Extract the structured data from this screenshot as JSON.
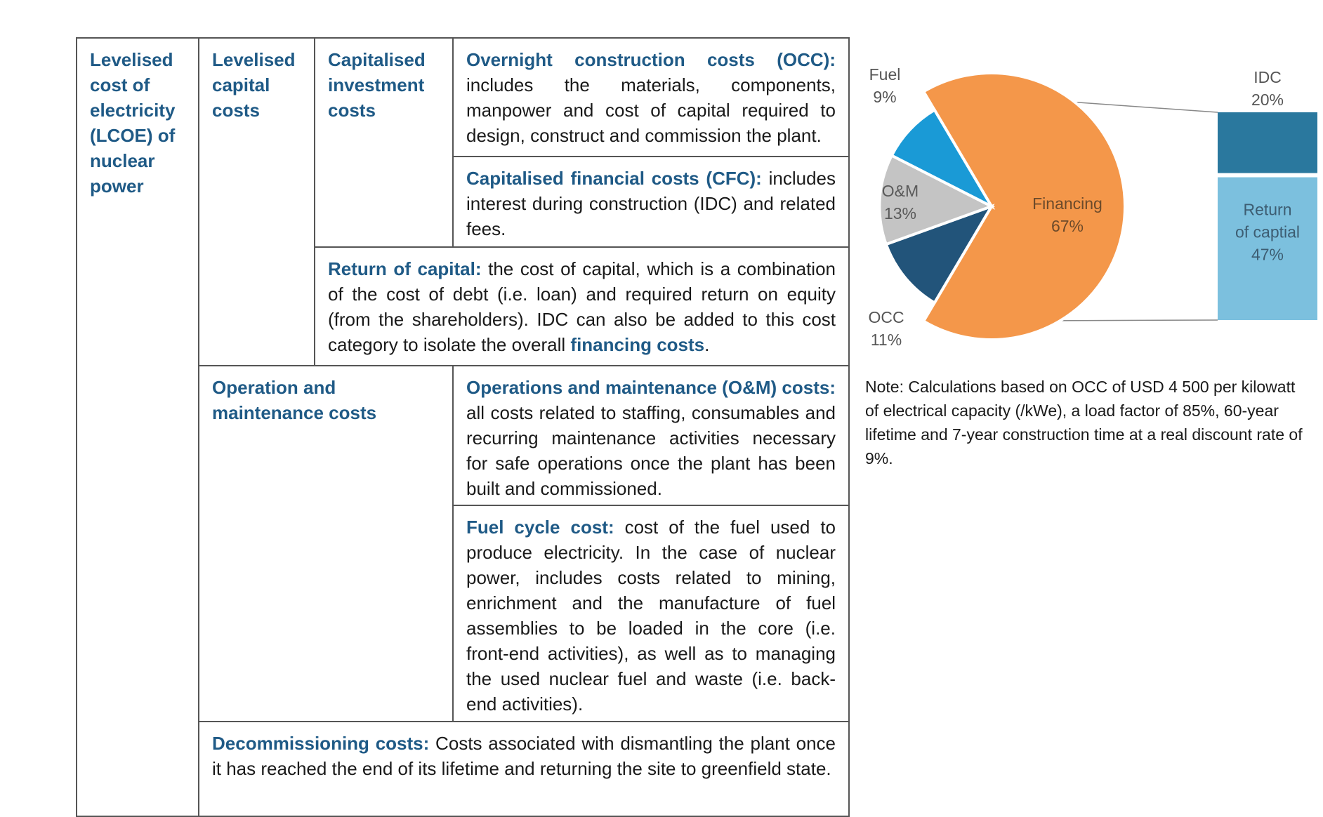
{
  "table": {
    "lcoe": "Levelised cost of electricity (LCOE) of nuclear power",
    "levelised_capital": "Levelised capital costs",
    "capitalised_investment": "Capitalised investment costs",
    "occ": {
      "title": "Overnight construction costs (OCC):",
      "text": " includes the materials, components, manpower and cost of capital required to design, construct and commission the plant."
    },
    "cfc": {
      "title": "Capitalised financial costs (CFC):",
      "text": " includes interest during construction (IDC) and related fees."
    },
    "return_capital": {
      "title": "Return of capital:",
      "text": " the cost of capital, which is a combination of the cost of debt (i.e. loan) and required return on equity (from the shareholders). IDC can also be added to this cost category to isolate the overall ",
      "kw": "financing costs",
      "end": "."
    },
    "om_costs": "Operation and maintenance costs",
    "om": {
      "title": "Operations and maintenance (O&M) costs:",
      "text": " all costs related to staffing, consumables and recurring maintenance activities necessary for safe operations once the plant has been built and commissioned."
    },
    "fuel": {
      "title": "Fuel cycle cost:",
      "text": " cost of the fuel used to produce electricity. In the case of nuclear power, includes costs related to mining, enrichment and the manufacture of fuel assemblies to be loaded in the core (i.e. front-end activities), as well as to managing the used nuclear fuel and waste (i.e. back-end activities)."
    },
    "decom": {
      "title": "Decommissioning costs:",
      "text": " Costs associated with dismantling the plant once it has reached the end of its lifetime and returning the site to greenfield state."
    }
  },
  "chart_data": [
    {
      "type": "pie",
      "slices": [
        {
          "label": "Financing",
          "value": 67,
          "display": "67%",
          "color": "#f4974a"
        },
        {
          "label": "OCC",
          "value": 11,
          "display": "11%",
          "color": "#22547a"
        },
        {
          "label": "O&M",
          "value": 13,
          "display": "13%",
          "color": "#c4c4c4"
        },
        {
          "label": "Fuel",
          "value": 9,
          "display": "9%",
          "color": "#1a9ad6"
        }
      ]
    },
    {
      "type": "bar",
      "stacked": true,
      "series": [
        {
          "name": "IDC",
          "value": 20,
          "display": "20%",
          "color": "#2a789e"
        },
        {
          "name": "Return of captial",
          "value": 47,
          "display": "47%",
          "color": "#7cc0de"
        }
      ]
    }
  ],
  "note": "Note: Calculations based on OCC of USD 4 500 per kilowatt of electrical capacity (/kWe), a load factor of 85%, 60-year lifetime and 7-year construction time at a real discount rate of 9%."
}
